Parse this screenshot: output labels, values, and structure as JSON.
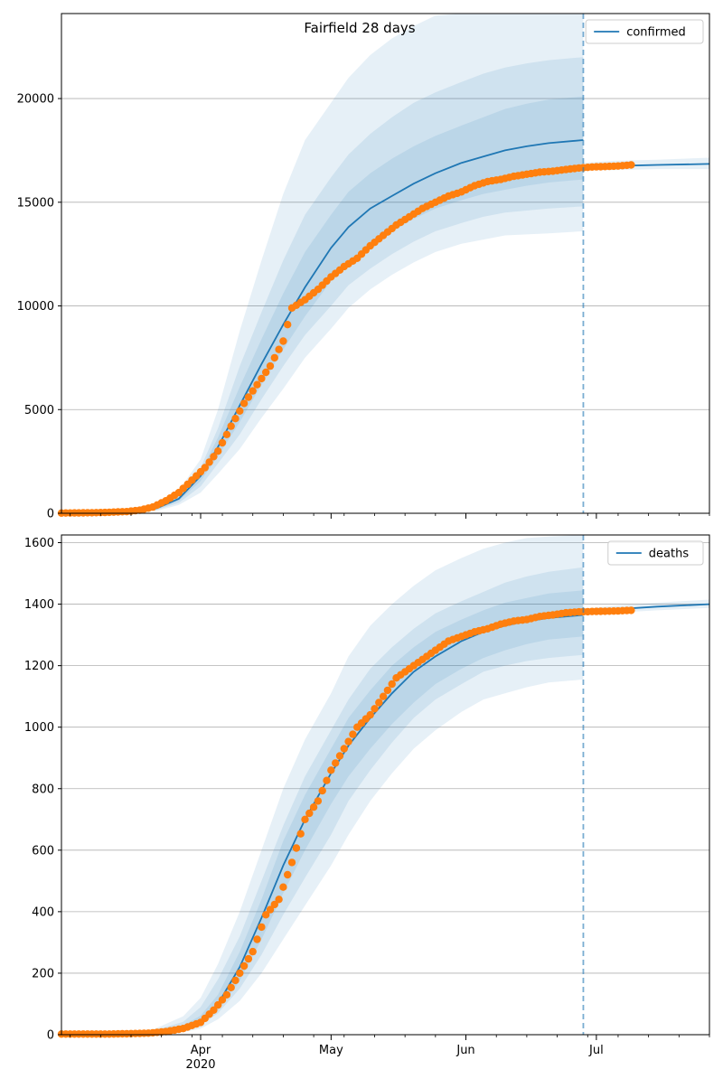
{
  "chart_data": [
    {
      "type": "line",
      "title": "Fairfield 28 days",
      "xlim": [
        "2020-02-29",
        "2020-07-27"
      ],
      "ylim": [
        0,
        24100
      ],
      "yticks": [
        0,
        5000,
        10000,
        15000,
        20000
      ],
      "xticks": [
        {
          "date": "2020-04-01",
          "label": "Apr",
          "sublabel": "2020"
        },
        {
          "date": "2020-05-01",
          "label": "May",
          "sublabel": ""
        },
        {
          "date": "2020-06-01",
          "label": "Jun",
          "sublabel": ""
        },
        {
          "date": "2020-07-01",
          "label": "Jul",
          "sublabel": ""
        }
      ],
      "grid": "horizontal",
      "legend_position": "top-right",
      "forecast_start": "2020-06-28",
      "colors": {
        "model": "#1f77b4",
        "observed": "#ff7f0e",
        "band": "#1f77b4",
        "grid": "#b0b0b0"
      },
      "series": [
        {
          "name": "confirmed",
          "kind": "model-line",
          "x": [
            "2020-02-29",
            "2020-03-15",
            "2020-03-22",
            "2020-03-27",
            "2020-04-01",
            "2020-04-05",
            "2020-04-10",
            "2020-04-15",
            "2020-04-20",
            "2020-04-25",
            "2020-05-01",
            "2020-05-05",
            "2020-05-10",
            "2020-05-15",
            "2020-05-20",
            "2020-05-25",
            "2020-05-31",
            "2020-06-05",
            "2020-06-10",
            "2020-06-15",
            "2020-06-20",
            "2020-06-28"
          ],
          "y": [
            0,
            50,
            250,
            700,
            1800,
            3200,
            5200,
            7200,
            9100,
            10900,
            12800,
            13800,
            14700,
            15300,
            15900,
            16400,
            16900,
            17200,
            17500,
            17700,
            17850,
            18000
          ]
        },
        {
          "name": "",
          "kind": "model-line",
          "x": [
            "2020-06-28",
            "2020-07-05",
            "2020-07-15",
            "2020-07-27"
          ],
          "y": [
            16700,
            16750,
            16800,
            16850
          ]
        },
        {
          "name": "",
          "kind": "observed",
          "x": [
            "2020-02-29",
            "2020-03-05",
            "2020-03-10",
            "2020-03-15",
            "2020-03-18",
            "2020-03-21",
            "2020-03-24",
            "2020-03-27",
            "2020-03-30",
            "2020-04-02",
            "2020-04-05",
            "2020-04-08",
            "2020-04-11",
            "2020-04-14",
            "2020-04-17",
            "2020-04-20",
            "2020-04-22",
            "2020-04-25",
            "2020-04-28",
            "2020-05-01",
            "2020-05-04",
            "2020-05-07",
            "2020-05-10",
            "2020-05-13",
            "2020-05-16",
            "2020-05-19",
            "2020-05-22",
            "2020-05-25",
            "2020-05-28",
            "2020-05-31",
            "2020-06-03",
            "2020-06-06",
            "2020-06-09",
            "2020-06-12",
            "2020-06-15",
            "2020-06-18",
            "2020-06-21",
            "2020-06-24",
            "2020-06-27",
            "2020-06-30",
            "2020-07-03",
            "2020-07-06",
            "2020-07-09"
          ],
          "y": [
            10,
            20,
            40,
            80,
            150,
            300,
            600,
            1000,
            1600,
            2200,
            3000,
            4200,
            5300,
            6200,
            7100,
            8300,
            9900,
            10300,
            10800,
            11400,
            11900,
            12300,
            12900,
            13400,
            13900,
            14300,
            14700,
            15000,
            15300,
            15500,
            15800,
            16000,
            16100,
            16250,
            16350,
            16450,
            16500,
            16580,
            16650,
            16700,
            16720,
            16750,
            16800
          ]
        }
      ],
      "bands": [
        {
          "upper": [
            0,
            80,
            400,
            1100,
            2600,
            5000,
            8800,
            12200,
            15400,
            18000,
            19800,
            21000,
            22100,
            22900,
            23500,
            24000,
            24100,
            24100,
            24100,
            24100,
            24100,
            24100
          ],
          "lower": [
            0,
            20,
            120,
            400,
            1000,
            1900,
            3100,
            4600,
            6000,
            7500,
            8900,
            9900,
            10800,
            11500,
            12100,
            12600,
            13000,
            13200,
            13400,
            13450,
            13500,
            13600
          ]
        },
        {
          "upper": [
            0,
            65,
            330,
            920,
            2200,
            4100,
            7100,
            9700,
            12200,
            14400,
            16200,
            17300,
            18300,
            19100,
            19800,
            20300,
            20800,
            21200,
            21500,
            21700,
            21850,
            22000
          ],
          "lower": [
            0,
            30,
            170,
            500,
            1300,
            2400,
            3800,
            5500,
            7100,
            8600,
            10000,
            11000,
            11800,
            12500,
            13100,
            13600,
            14000,
            14300,
            14500,
            14600,
            14700,
            14800
          ]
        },
        {
          "upper": [
            0,
            58,
            290,
            810,
            2000,
            3650,
            6100,
            8400,
            10600,
            12600,
            14400,
            15500,
            16400,
            17100,
            17700,
            18200,
            18700,
            19100,
            19500,
            19750,
            19950,
            20100
          ],
          "lower": [
            0,
            40,
            210,
            600,
            1550,
            2750,
            4400,
            6200,
            7900,
            9500,
            11200,
            12100,
            13000,
            13600,
            14200,
            14700,
            15100,
            15400,
            15600,
            15800,
            15950,
            16100
          ]
        }
      ],
      "bands_x": [
        "2020-02-29",
        "2020-03-15",
        "2020-03-22",
        "2020-03-27",
        "2020-04-01",
        "2020-04-05",
        "2020-04-10",
        "2020-04-15",
        "2020-04-20",
        "2020-04-25",
        "2020-05-01",
        "2020-05-05",
        "2020-05-10",
        "2020-05-15",
        "2020-05-20",
        "2020-05-25",
        "2020-05-31",
        "2020-06-05",
        "2020-06-10",
        "2020-06-15",
        "2020-06-20",
        "2020-06-28"
      ],
      "tail_band": {
        "x": [
          "2020-06-28",
          "2020-07-05",
          "2020-07-15",
          "2020-07-27"
        ],
        "upper": [
          16900,
          17000,
          17050,
          17150
        ],
        "lower": [
          16550,
          16550,
          16600,
          16600
        ]
      }
    },
    {
      "type": "line",
      "title": "",
      "xlim": [
        "2020-02-29",
        "2020-07-27"
      ],
      "ylim": [
        0,
        1625
      ],
      "yticks": [
        0,
        200,
        400,
        600,
        800,
        1000,
        1200,
        1400,
        1600
      ],
      "xticks": [
        {
          "date": "2020-04-01",
          "label": "Apr",
          "sublabel": "2020"
        },
        {
          "date": "2020-05-01",
          "label": "May",
          "sublabel": ""
        },
        {
          "date": "2020-06-01",
          "label": "Jun",
          "sublabel": ""
        },
        {
          "date": "2020-07-01",
          "label": "Jul",
          "sublabel": ""
        }
      ],
      "grid": "horizontal",
      "legend_position": "top-right",
      "forecast_start": "2020-06-28",
      "colors": {
        "model": "#1f77b4",
        "observed": "#ff7f0e",
        "band": "#1f77b4",
        "grid": "#b0b0b0"
      },
      "series": [
        {
          "name": "deaths",
          "kind": "model-line",
          "x": [
            "2020-02-29",
            "2020-03-20",
            "2020-03-28",
            "2020-04-01",
            "2020-04-05",
            "2020-04-10",
            "2020-04-15",
            "2020-04-20",
            "2020-04-25",
            "2020-05-01",
            "2020-05-05",
            "2020-05-10",
            "2020-05-15",
            "2020-05-20",
            "2020-05-25",
            "2020-05-31",
            "2020-06-05",
            "2020-06-10",
            "2020-06-15",
            "2020-06-20",
            "2020-06-28"
          ],
          "y": [
            0,
            5,
            20,
            45,
            100,
            220,
            380,
            550,
            700,
            850,
            940,
            1030,
            1110,
            1180,
            1230,
            1280,
            1310,
            1330,
            1345,
            1355,
            1365
          ]
        },
        {
          "name": "",
          "kind": "model-line",
          "x": [
            "2020-06-28",
            "2020-07-05",
            "2020-07-15",
            "2020-07-27"
          ],
          "y": [
            1375,
            1383,
            1392,
            1400
          ]
        },
        {
          "name": "",
          "kind": "observed",
          "x": [
            "2020-02-29",
            "2020-03-05",
            "2020-03-10",
            "2020-03-15",
            "2020-03-20",
            "2020-03-24",
            "2020-03-28",
            "2020-04-01",
            "2020-04-04",
            "2020-04-07",
            "2020-04-10",
            "2020-04-13",
            "2020-04-16",
            "2020-04-19",
            "2020-04-22",
            "2020-04-25",
            "2020-04-28",
            "2020-05-01",
            "2020-05-04",
            "2020-05-07",
            "2020-05-10",
            "2020-05-13",
            "2020-05-16",
            "2020-05-19",
            "2020-05-22",
            "2020-05-25",
            "2020-05-28",
            "2020-05-31",
            "2020-06-03",
            "2020-06-06",
            "2020-06-09",
            "2020-06-12",
            "2020-06-15",
            "2020-06-18",
            "2020-06-21",
            "2020-06-24",
            "2020-06-27",
            "2020-06-30",
            "2020-07-03",
            "2020-07-06",
            "2020-07-09"
          ],
          "y": [
            2,
            2,
            2,
            3,
            5,
            10,
            20,
            40,
            80,
            130,
            200,
            270,
            390,
            440,
            560,
            700,
            760,
            860,
            930,
            1000,
            1040,
            1100,
            1160,
            1190,
            1220,
            1250,
            1280,
            1295,
            1310,
            1320,
            1335,
            1345,
            1350,
            1360,
            1365,
            1372,
            1375,
            1376,
            1377,
            1378,
            1380
          ]
        }
      ],
      "bands": [
        {
          "upper": [
            0,
            10,
            60,
            120,
            230,
            400,
            600,
            800,
            960,
            1110,
            1230,
            1330,
            1400,
            1460,
            1510,
            1550,
            1580,
            1600,
            1615,
            1620,
            1625
          ],
          "lower": [
            0,
            1,
            8,
            20,
            50,
            110,
            200,
            310,
            420,
            550,
            650,
            760,
            850,
            930,
            990,
            1050,
            1090,
            1110,
            1130,
            1145,
            1155
          ]
        },
        {
          "upper": [
            0,
            8,
            42,
            90,
            180,
            320,
            500,
            680,
            840,
            990,
            1090,
            1190,
            1260,
            1320,
            1370,
            1410,
            1440,
            1470,
            1490,
            1505,
            1520
          ],
          "lower": [
            0,
            2,
            12,
            30,
            70,
            150,
            260,
            390,
            510,
            650,
            760,
            860,
            950,
            1030,
            1090,
            1140,
            1180,
            1200,
            1215,
            1225,
            1235
          ]
        },
        {
          "upper": [
            0,
            6,
            30,
            62,
            130,
            270,
            440,
            630,
            780,
            930,
            1030,
            1120,
            1200,
            1260,
            1310,
            1350,
            1380,
            1405,
            1420,
            1435,
            1445
          ],
          "lower": [
            0,
            3,
            16,
            35,
            80,
            175,
            310,
            460,
            600,
            750,
            840,
            930,
            1010,
            1080,
            1140,
            1190,
            1225,
            1250,
            1270,
            1285,
            1295
          ]
        }
      ],
      "bands_x": [
        "2020-02-29",
        "2020-03-20",
        "2020-03-28",
        "2020-04-01",
        "2020-04-05",
        "2020-04-10",
        "2020-04-15",
        "2020-04-20",
        "2020-04-25",
        "2020-05-01",
        "2020-05-05",
        "2020-05-10",
        "2020-05-15",
        "2020-05-20",
        "2020-05-25",
        "2020-05-31",
        "2020-06-05",
        "2020-06-10",
        "2020-06-15",
        "2020-06-20",
        "2020-06-28"
      ],
      "tail_band": {
        "x": [
          "2020-06-28",
          "2020-07-05",
          "2020-07-15",
          "2020-07-27"
        ],
        "upper": [
          1385,
          1395,
          1405,
          1415
        ],
        "lower": [
          1365,
          1372,
          1380,
          1388
        ]
      }
    }
  ]
}
